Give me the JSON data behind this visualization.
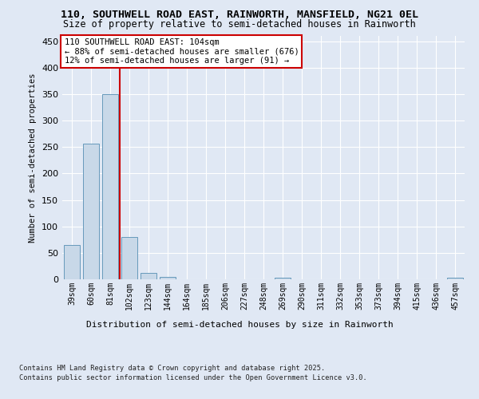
{
  "title_line1": "110, SOUTHWELL ROAD EAST, RAINWORTH, MANSFIELD, NG21 0EL",
  "title_line2": "Size of property relative to semi-detached houses in Rainworth",
  "xlabel": "Distribution of semi-detached houses by size in Rainworth",
  "ylabel": "Number of semi-detached properties",
  "categories": [
    "39sqm",
    "60sqm",
    "81sqm",
    "102sqm",
    "123sqm",
    "144sqm",
    "164sqm",
    "185sqm",
    "206sqm",
    "227sqm",
    "248sqm",
    "269sqm",
    "290sqm",
    "311sqm",
    "332sqm",
    "353sqm",
    "373sqm",
    "394sqm",
    "415sqm",
    "436sqm",
    "457sqm"
  ],
  "values": [
    65,
    256,
    350,
    80,
    12,
    4,
    0,
    0,
    0,
    0,
    0,
    3,
    0,
    0,
    0,
    0,
    0,
    0,
    0,
    0,
    3
  ],
  "bar_color": "#c8d8e8",
  "bar_edge_color": "#6699bb",
  "vline_color": "#cc0000",
  "annotation_title": "110 SOUTHWELL ROAD EAST: 104sqm",
  "annotation_line2": "← 88% of semi-detached houses are smaller (676)",
  "annotation_line3": "12% of semi-detached houses are larger (91) →",
  "annotation_box_color": "#ffffff",
  "annotation_box_edge": "#cc0000",
  "ylim": [
    0,
    460
  ],
  "yticks": [
    0,
    50,
    100,
    150,
    200,
    250,
    300,
    350,
    400,
    450
  ],
  "footnote1": "Contains HM Land Registry data © Crown copyright and database right 2025.",
  "footnote2": "Contains public sector information licensed under the Open Government Licence v3.0.",
  "bg_color": "#e0e8f4",
  "plot_bg_color": "#e0e8f4"
}
